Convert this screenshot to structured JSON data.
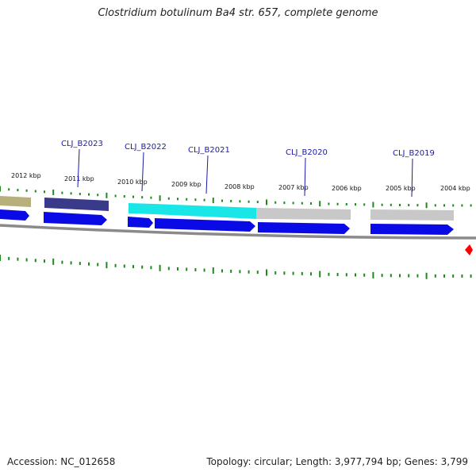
{
  "title": "Clostridium botulinum Ba4 str. 657, complete genome",
  "footer": {
    "accession": "Accession: NC_012658",
    "topology": "Topology: circular; Length: 3,977,794 bp; Genes: 3,799"
  },
  "scale_labels": [
    "2012 kbp",
    "2011 kbp",
    "2010 kbp",
    "2009 kbp",
    "2008 kbp",
    "2007 kbp",
    "2006 kbp",
    "2005 kbp",
    "2004 kbp"
  ],
  "gene_labels": [
    "CLJ_B2023",
    "CLJ_B2022",
    "CLJ_B2021",
    "CLJ_B2020",
    "CLJ_B2019"
  ],
  "colors": {
    "tick": "#1e8a1e",
    "arrow_blue": "#0a0ae6",
    "feature_olive": "#b8b07a",
    "feature_navy": "#3a3a8a",
    "feature_cyan": "#19e6e6",
    "feature_gray": "#c8c8c8",
    "backbone": "#8a8a8a",
    "label_line": "#1a1aa8",
    "marker_red": "#ff0000"
  }
}
